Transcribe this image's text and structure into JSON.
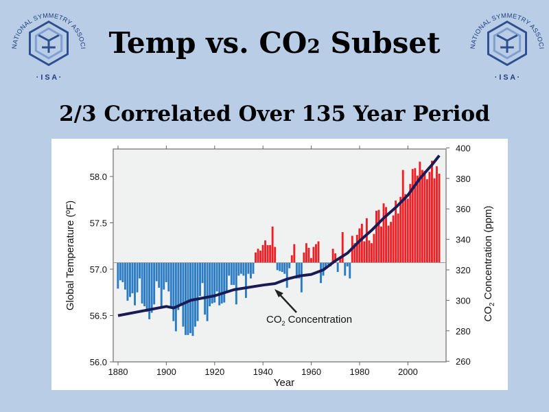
{
  "slide": {
    "title_main": "Temp vs. CO",
    "title_sub2": "2",
    "title_rest": " Subset",
    "subtitle": "2/3 Correlated Over 135 Year Period",
    "logo_ring_text": "INTERNATIONAL SYMMETRY ASSOCIATION",
    "logo_abbrev": "· I S A ·",
    "background_color": "#b9cde6"
  },
  "chart_data": {
    "type": "bar",
    "title": "",
    "xlabel": "Year",
    "ylabel": "Global Temperature (ºF)",
    "y2label_prefix": "CO",
    "y2label_sub": "2",
    "y2label_suffix": " Concentration (ppm)",
    "xlim": [
      1880,
      2013
    ],
    "ylim": [
      56.0,
      58.3
    ],
    "y2lim": [
      260,
      400
    ],
    "baseline": 57.07,
    "x_ticks": [
      "1880",
      "1900",
      "1920",
      "1940",
      "1960",
      "1980",
      "2000"
    ],
    "y_ticks": [
      "56.0",
      "56.5",
      "57.0",
      "57.5",
      "58.0"
    ],
    "y2_ticks": [
      "260",
      "280",
      "300",
      "320",
      "340",
      "360",
      "380",
      "400"
    ],
    "grid": false,
    "colors": {
      "above": "#ee2026",
      "below": "#2a7bc4",
      "co2_line": "#1a1a55",
      "plot_bg": "#f0f1f1"
    },
    "temperature": {
      "years_start": 1880,
      "values": [
        56.79,
        56.88,
        56.86,
        56.78,
        56.66,
        56.7,
        56.74,
        56.61,
        56.75,
        56.9,
        56.63,
        56.6,
        56.54,
        56.46,
        56.53,
        56.62,
        56.87,
        56.8,
        56.6,
        56.78,
        56.86,
        56.76,
        56.6,
        56.44,
        56.33,
        56.56,
        56.62,
        56.38,
        56.29,
        56.29,
        56.31,
        56.28,
        56.38,
        56.44,
        56.71,
        56.85,
        56.51,
        56.44,
        56.6,
        56.63,
        56.64,
        56.76,
        56.61,
        56.63,
        56.64,
        56.76,
        56.93,
        56.83,
        56.83,
        56.62,
        56.93,
        56.95,
        56.93,
        56.69,
        56.95,
        56.9,
        56.95,
        57.18,
        57.22,
        57.2,
        57.26,
        57.31,
        57.26,
        57.26,
        57.46,
        57.24,
        56.99,
        56.98,
        56.97,
        56.95,
        56.8,
        57.01,
        57.15,
        57.27,
        56.9,
        56.9,
        56.75,
        57.18,
        57.28,
        57.23,
        57.12,
        57.24,
        57.27,
        57.3,
        56.85,
        56.93,
        57.02,
        57.05,
        57.03,
        57.22,
        57.17,
        56.97,
        57.12,
        57.4,
        56.93,
        57.03,
        56.9,
        57.36,
        57.28,
        57.37,
        57.44,
        57.49,
        57.3,
        57.55,
        57.31,
        57.28,
        57.38,
        57.63,
        57.64,
        57.46,
        57.71,
        57.67,
        57.47,
        57.51,
        57.58,
        57.74,
        57.6,
        57.78,
        58.07,
        57.81,
        57.76,
        57.92,
        58.08,
        58.09,
        58.01,
        58.16,
        58.07,
        58.06,
        57.97,
        58.05,
        58.17,
        57.98,
        58.11,
        58.03
      ]
    },
    "co2_series": {
      "name": "CO2 Concentration",
      "annotation_prefix": "CO",
      "annotation_sub": "2",
      "annotation_suffix": " Concentration",
      "points": [
        [
          1880,
          290
        ],
        [
          1890,
          293
        ],
        [
          1900,
          296
        ],
        [
          1903,
          295
        ],
        [
          1910,
          300
        ],
        [
          1920,
          303
        ],
        [
          1928,
          307
        ],
        [
          1940,
          310
        ],
        [
          1945,
          311
        ],
        [
          1950,
          314
        ],
        [
          1955,
          316
        ],
        [
          1960,
          317
        ],
        [
          1965,
          320
        ],
        [
          1970,
          326
        ],
        [
          1975,
          331
        ],
        [
          1980,
          339
        ],
        [
          1985,
          346
        ],
        [
          1990,
          354
        ],
        [
          1995,
          361
        ],
        [
          2000,
          369
        ],
        [
          2005,
          380
        ],
        [
          2010,
          389
        ],
        [
          2013,
          395
        ]
      ]
    }
  }
}
